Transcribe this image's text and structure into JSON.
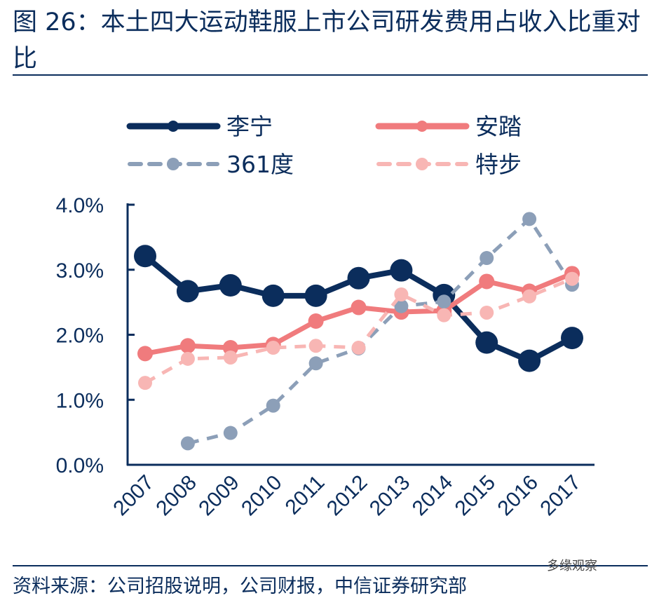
{
  "title": "图 26：本土四大运动鞋服上市公司研发费用占收入比重对比",
  "source": "资料来源：公司招股说明，公司财报，中信证券研究部",
  "watermark": "多缘观察",
  "chart_data": {
    "type": "line",
    "title": "",
    "ylim": [
      0,
      4
    ],
    "yticks": [
      "0.0%",
      "1.0%",
      "2.0%",
      "3.0%",
      "4.0%"
    ],
    "categories": [
      "2007",
      "2008",
      "2009",
      "2010",
      "2011",
      "2012",
      "2013",
      "2014",
      "2015",
      "2016",
      "2017"
    ],
    "legend_position": "top",
    "series": [
      {
        "name": "李宁",
        "color": "#0b2d5c",
        "dash": false,
        "values": [
          3.21,
          2.67,
          2.76,
          2.6,
          2.6,
          2.87,
          2.99,
          2.61,
          1.88,
          1.6,
          1.95
        ]
      },
      {
        "name": "安踏",
        "color": "#f07b7d",
        "dash": false,
        "values": [
          1.71,
          1.83,
          1.8,
          1.85,
          2.21,
          2.42,
          2.35,
          2.37,
          2.82,
          2.67,
          2.94
        ]
      },
      {
        "name": "361度",
        "color": "#8c9fb8",
        "dash": true,
        "values": [
          null,
          0.33,
          0.49,
          0.91,
          1.56,
          1.79,
          2.44,
          2.51,
          3.18,
          3.78,
          2.77
        ]
      },
      {
        "name": "特步",
        "color": "#f8b6b4",
        "dash": true,
        "values": [
          1.26,
          1.63,
          1.65,
          1.8,
          1.83,
          1.8,
          2.62,
          2.3,
          2.34,
          2.59,
          2.86
        ]
      }
    ]
  }
}
